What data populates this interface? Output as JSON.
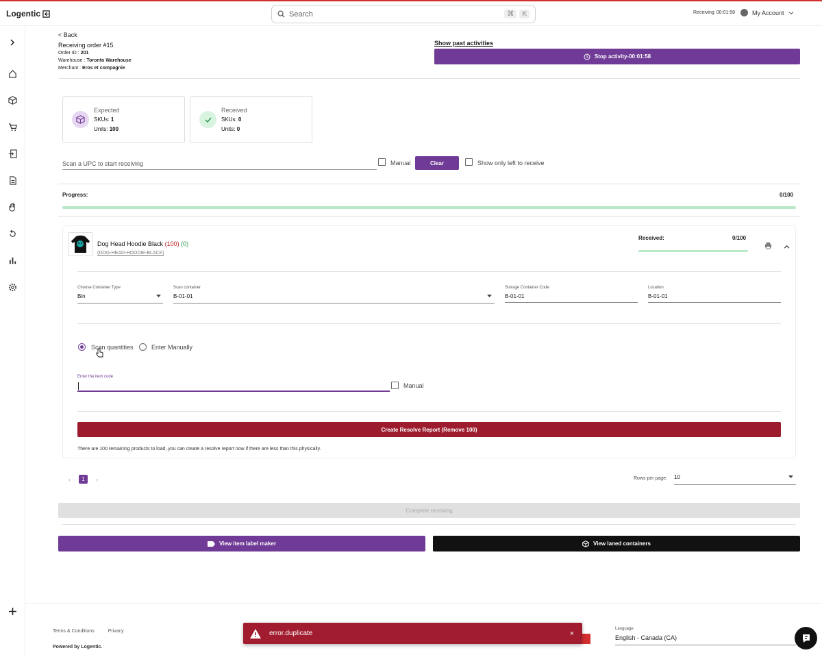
{
  "app": {
    "logo": "Logentic",
    "search_placeholder": "Search",
    "kbd1": "⌘",
    "kbd2": "K",
    "tracker_label": "Receiving",
    "tracker_time": "00:01:58",
    "account": "My Account"
  },
  "header": {
    "back": "< Back",
    "title": "Receiving order #15",
    "order_id_label": "Order ID :",
    "order_id": "201",
    "warehouse_label": "Warehouse :",
    "warehouse": "Toronto Warehouse",
    "merchant_label": "Merchant :",
    "merchant": "Eros et compagnie",
    "past_activities": "Show past activities",
    "stop_activity": "Stop activity-00:01:58"
  },
  "cards": {
    "expected": {
      "title": "Expected",
      "skus_label": "SKUs:",
      "skus": "1",
      "units_label": "Units:",
      "units": "100"
    },
    "received": {
      "title": "Received",
      "skus_label": "SKUs:",
      "skus": "0",
      "units_label": "Units:",
      "units": "0"
    }
  },
  "scan": {
    "upc_placeholder": "Scan a UPC to start receiving",
    "manual": "Manual",
    "clear": "Clear",
    "show_left": "Show only left to receive"
  },
  "progress": {
    "label": "Progress:",
    "value_text": "0/100",
    "fraction": 0
  },
  "item": {
    "name": "Dog Head Hoodie Black",
    "expected_count": "(100)",
    "received_count": "(0)",
    "sku": "(DOG-HEAD-HOODIE-BLACK)",
    "received_label": "Received:",
    "received_value": "0/100",
    "received_fraction": 0,
    "container_type_label": "Choose Container Type",
    "container_type": "Bin",
    "scan_container_label": "Scan container",
    "scan_container": "B-01-01",
    "storage_code_label": "Storage Container Code",
    "storage_code": "B-01-01",
    "location_label": "Location",
    "location": "B-01-01",
    "radio_scan": "Scan quantities",
    "radio_manual": "Enter Manually",
    "item_code_label": "Enter the item code",
    "item_manual": "Manual",
    "resolve_button": "Create Resolve Report (Remove 100)",
    "note": "There are 100 remaining products to load, you can create a resolve report now if there are less than this physically."
  },
  "pagination": {
    "page": "1",
    "prev": "‹",
    "next": "›",
    "rows_label": "Rows per page:",
    "rows_value": "10"
  },
  "actions": {
    "complete": "Complete receiving",
    "label_maker": "View item label maker",
    "laned": "View laned containers"
  },
  "footer": {
    "terms": "Terms & Conditions",
    "privacy": "Privacy",
    "powered": "Powered by Logentic.",
    "language_label": "Language",
    "language": "English - Canada (CA)"
  },
  "toast": {
    "message": "error.duplicate",
    "close": "×"
  },
  "colors": {
    "brand": "#6f3b96",
    "danger": "#9c1c2e",
    "progress_track": "#b8e8c8"
  }
}
